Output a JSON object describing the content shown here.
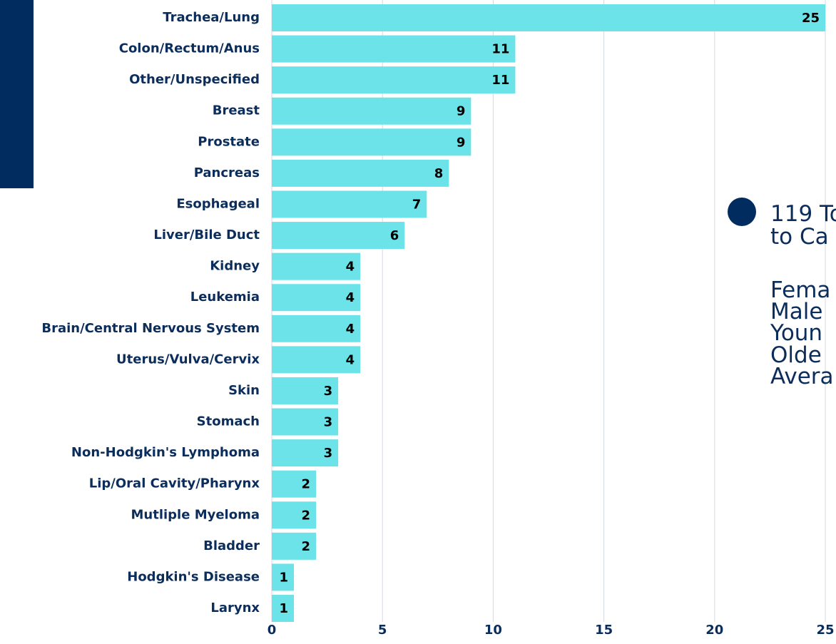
{
  "chart_data": {
    "type": "bar",
    "orientation": "horizontal",
    "categories": [
      "Trachea/Lung",
      "Colon/Rectum/Anus",
      "Other/Unspecified",
      "Breast",
      "Prostate",
      "Pancreas",
      "Esophageal",
      "Liver/Bile Duct",
      "Kidney",
      "Leukemia",
      "Brain/Central Nervous System",
      "Uterus/Vulva/Cervix",
      "Skin",
      "Stomach",
      "Non-Hodgkin's Lymphoma",
      "Lip/Oral Cavity/Pharynx",
      "Mutliple Myeloma",
      "Bladder",
      "Hodgkin's Disease",
      "Larynx"
    ],
    "values": [
      25,
      11,
      11,
      9,
      9,
      8,
      7,
      6,
      4,
      4,
      4,
      4,
      3,
      3,
      3,
      2,
      2,
      2,
      1,
      1
    ],
    "color": "#6be3e8",
    "xlim": [
      0,
      25
    ],
    "xticks": [
      0,
      5,
      10,
      15,
      20,
      25
    ],
    "grid": true,
    "annotations": [
      "119 To",
      "to Ca",
      "Fema",
      "Male",
      "Youn",
      "Olde",
      "Avera"
    ]
  }
}
